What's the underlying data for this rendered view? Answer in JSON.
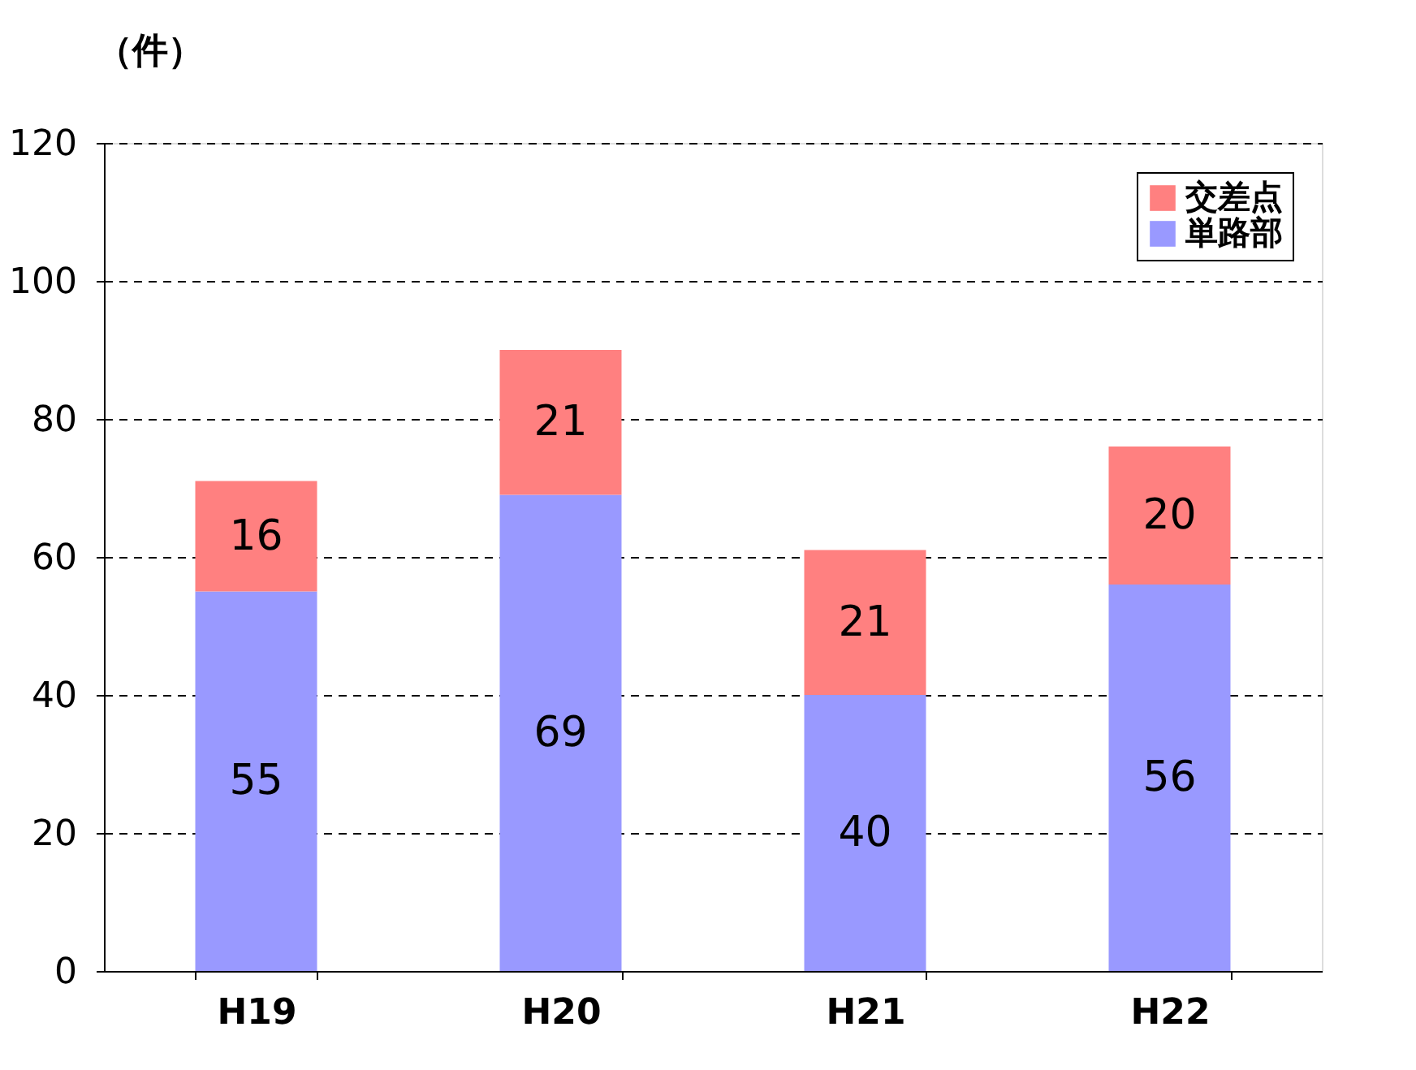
{
  "chart_data": {
    "type": "bar",
    "ylabel": "（件）",
    "categories": [
      "H19",
      "H20",
      "H21",
      "H22"
    ],
    "series": [
      {
        "name": "単路部",
        "color": "#9999ff",
        "values": [
          55,
          69,
          40,
          56
        ]
      },
      {
        "name": "交差点",
        "color": "#ff8080",
        "values": [
          16,
          21,
          21,
          20
        ]
      }
    ],
    "stacked": true,
    "ylim": [
      0,
      120
    ],
    "yticks": [
      0,
      20,
      40,
      60,
      80,
      100,
      120
    ],
    "grid": "y",
    "legend": "top right",
    "data_labels": true
  }
}
